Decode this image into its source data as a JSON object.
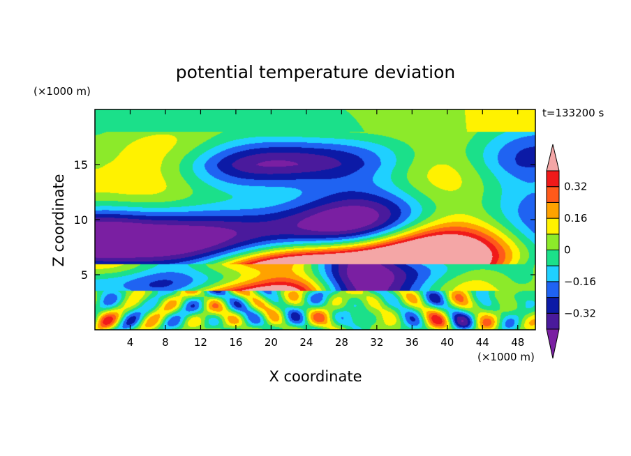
{
  "chart_data": {
    "type": "heatmap",
    "title": "potential temperature deviation",
    "xlabel": "X coordinate",
    "ylabel": "Z coordinate",
    "x_unit": "(×1000 m)",
    "y_unit": "(×1000 m)",
    "time_label": "t=133200 s",
    "xlim": [
      0,
      50
    ],
    "ylim": [
      0,
      20
    ],
    "x_ticks": [
      4,
      8,
      12,
      16,
      20,
      24,
      28,
      32,
      36,
      40,
      44,
      48
    ],
    "x_tick_labels": [
      "4",
      "8",
      "12",
      "16",
      "20",
      "24",
      "28",
      "32",
      "36",
      "40",
      "44",
      "48"
    ],
    "y_ticks": [
      5,
      10,
      15
    ],
    "y_tick_labels": [
      "5",
      "10",
      "15"
    ],
    "colorbar": {
      "levels": [
        -0.4,
        -0.32,
        -0.24,
        -0.16,
        -0.08,
        0,
        0.08,
        0.16,
        0.24,
        0.32,
        0.4
      ],
      "labeled_levels": [
        0.32,
        0.16,
        0,
        -0.16,
        -0.32
      ],
      "labels": [
        "0.32",
        "0.16",
        "0",
        "−0.16",
        "−0.32"
      ],
      "colors": [
        "#7a1fa2",
        "#4a1a9c",
        "#0c1aa6",
        "#1f63f2",
        "#1fd0ff",
        "#1be08a",
        "#8cea2a",
        "#fff200",
        "#ffa200",
        "#ff5a1a",
        "#f01a1a",
        "#f4a6a6"
      ],
      "extend": "both"
    }
  }
}
